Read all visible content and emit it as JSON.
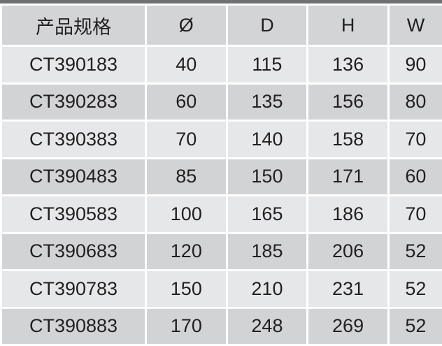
{
  "table": {
    "headers": [
      "产品规格",
      "Ø",
      "D",
      "H",
      "W"
    ],
    "rows": [
      [
        "CT390183",
        "40",
        "115",
        "136",
        "90"
      ],
      [
        "CT390283",
        "60",
        "135",
        "156",
        "80"
      ],
      [
        "CT390383",
        "70",
        "140",
        "158",
        "70"
      ],
      [
        "CT390483",
        "85",
        "150",
        "171",
        "60"
      ],
      [
        "CT390583",
        "100",
        "165",
        "186",
        "70"
      ],
      [
        "CT390683",
        "120",
        "185",
        "206",
        "52"
      ],
      [
        "CT390783",
        "150",
        "210",
        "231",
        "52"
      ],
      [
        "CT390883",
        "170",
        "248",
        "269",
        "52"
      ]
    ]
  },
  "colors": {
    "header_bg": "#d3d4d6",
    "row_light": "#e6e7e8",
    "row_dark": "#d2d3d5",
    "top_bar": "#6d7074"
  }
}
